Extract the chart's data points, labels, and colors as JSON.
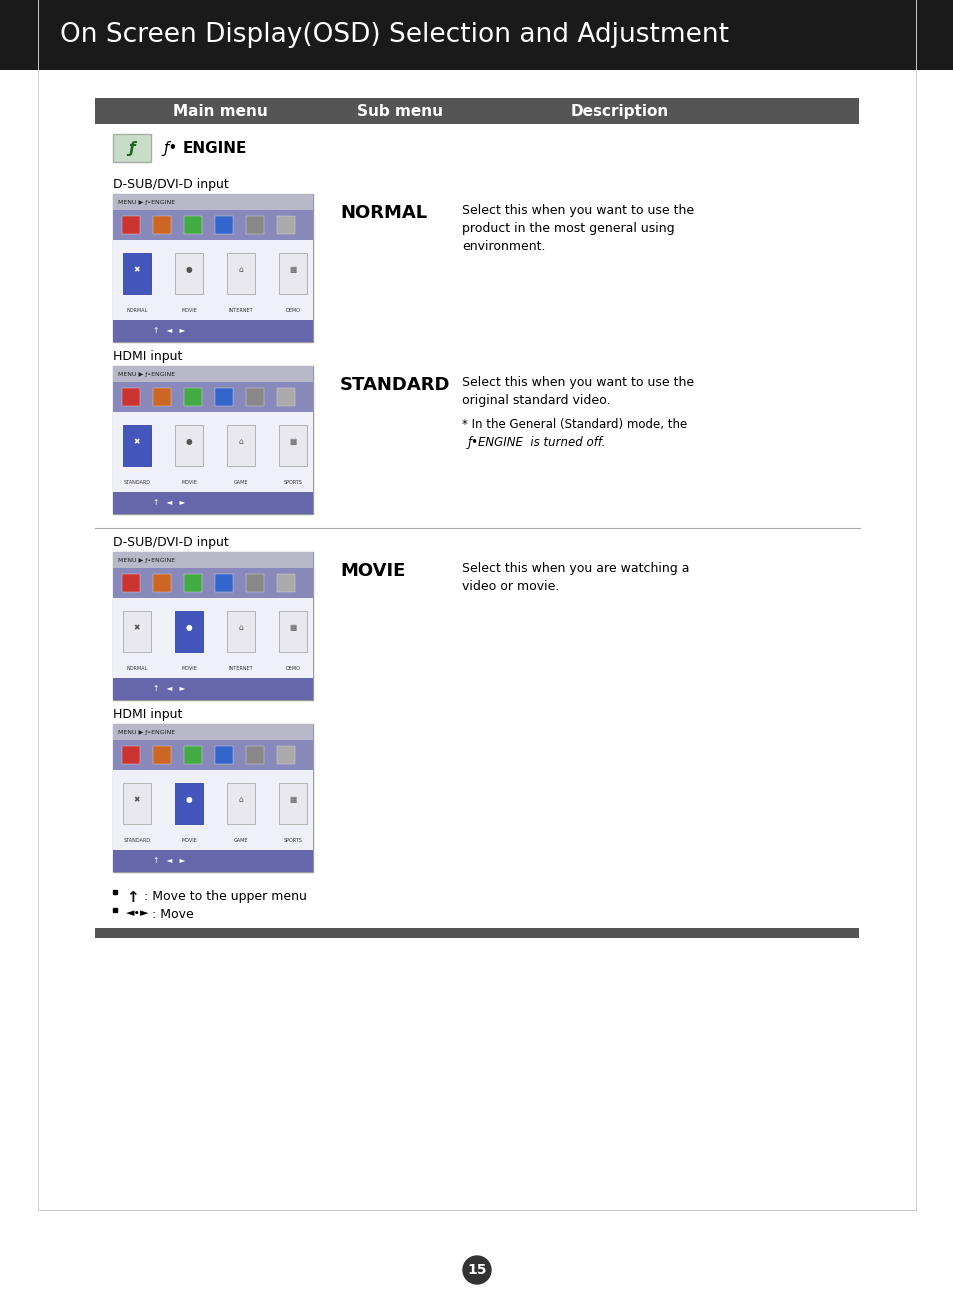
{
  "title": "On Screen Display(OSD) Selection and Adjustment",
  "title_bg": "#1a1a1a",
  "title_color": "#ffffff",
  "title_fontsize": 19,
  "page_bg": "#ffffff",
  "header_bg": "#555555",
  "header_color": "#ffffff",
  "header_labels": [
    "Main menu",
    "Sub menu",
    "Description"
  ],
  "header_fontsize": 11,
  "bottom_bar_color": "#555555",
  "page_number": "15",
  "footer_line1": ": Move to the upper menu",
  "footer_line2": ": Move"
}
